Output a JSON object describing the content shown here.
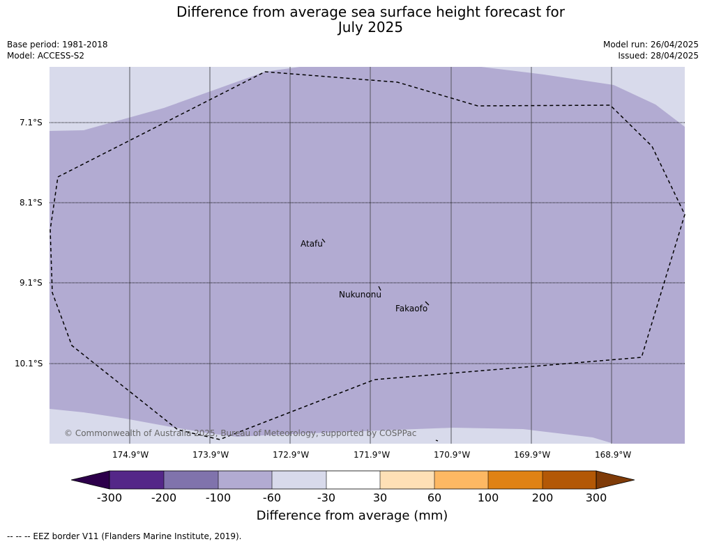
{
  "title": {
    "line1": "Difference from average sea surface height forecast for",
    "line2": "July 2025"
  },
  "meta": {
    "base_period": "Base period: 1981-2018",
    "model": "Model: ACCESS-S2",
    "model_run": "Model run: 26/04/2025",
    "issued": "Issued: 28/04/2025"
  },
  "axes": {
    "lat_labels": [
      "7.1°S",
      "8.1°S",
      "9.1°S",
      "10.1°S"
    ],
    "lon_labels": [
      "174.9°W",
      "173.9°W",
      "172.9°W",
      "171.9°W",
      "170.9°W",
      "169.9°W",
      "168.9°W"
    ]
  },
  "places": [
    "Atafu",
    "Nukunonu",
    "Fakaofo"
  ],
  "copyright": "© Commonwealth of Australia 2025, Bureau of Meteorology, supported by COSPPac",
  "colorbar": {
    "title": "Difference from average (mm)",
    "ticks": [
      "-300",
      "-200",
      "-100",
      "-60",
      "-30",
      "30",
      "60",
      "100",
      "200",
      "300"
    ],
    "colors": [
      "#2d004b",
      "#542788",
      "#8073ac",
      "#b2abd2",
      "#d8daeb",
      "#ffffff",
      "#fee0b6",
      "#fdb863",
      "#e08214",
      "#b35806",
      "#7f3b08"
    ]
  },
  "colors": {
    "map_main": "#b2abd2",
    "map_light": "#d8daeb"
  },
  "footer": "--  --  -- EEZ border V11 (Flanders Marine Institute, 2019)."
}
